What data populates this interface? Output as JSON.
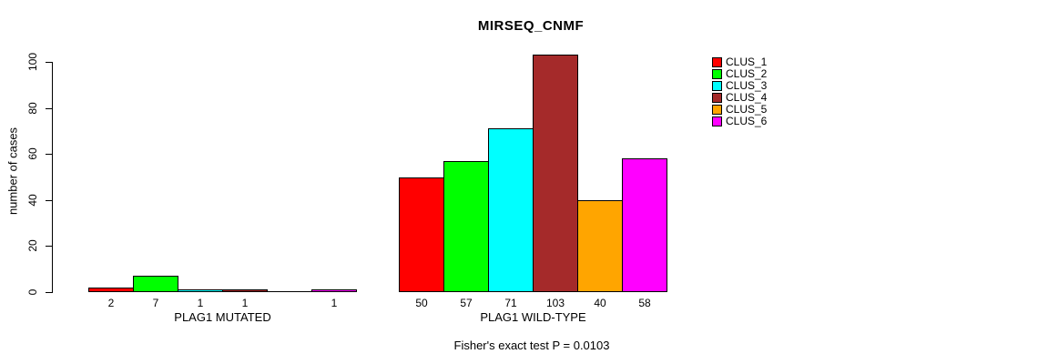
{
  "title": "MIRSEQ_CNMF",
  "y_axis": {
    "label": "number of cases"
  },
  "footer": "Fisher's exact test P = 0.0103",
  "chart_data": {
    "type": "bar",
    "title": "MIRSEQ_CNMF",
    "ylabel": "number of cases",
    "xlabel": "",
    "ylim": [
      0,
      100
    ],
    "yticks": [
      0,
      20,
      40,
      60,
      80,
      100
    ],
    "grid": false,
    "legend_position": "right-outside",
    "categories": [
      "PLAG1 MUTATED",
      "PLAG1 WILD-TYPE"
    ],
    "series": [
      {
        "name": "CLUS_1",
        "color": "#FF0000",
        "values": [
          2,
          50
        ]
      },
      {
        "name": "CLUS_2",
        "color": "#00FF00",
        "values": [
          7,
          57
        ]
      },
      {
        "name": "CLUS_3",
        "color": "#00FFFF",
        "values": [
          1,
          71
        ]
      },
      {
        "name": "CLUS_4",
        "color": "#A52A2A",
        "values": [
          1,
          103
        ]
      },
      {
        "name": "CLUS_5",
        "color": "#FFA500",
        "values": [
          0,
          40
        ]
      },
      {
        "name": "CLUS_6",
        "color": "#FF00FF",
        "values": [
          1,
          58
        ]
      }
    ],
    "bar_value_labels": [
      [
        "2",
        "7",
        "1",
        "1",
        "",
        "1"
      ],
      [
        "50",
        "57",
        "71",
        "103",
        "40",
        "58"
      ]
    ],
    "annotation": "Fisher's exact test P = 0.0103"
  }
}
